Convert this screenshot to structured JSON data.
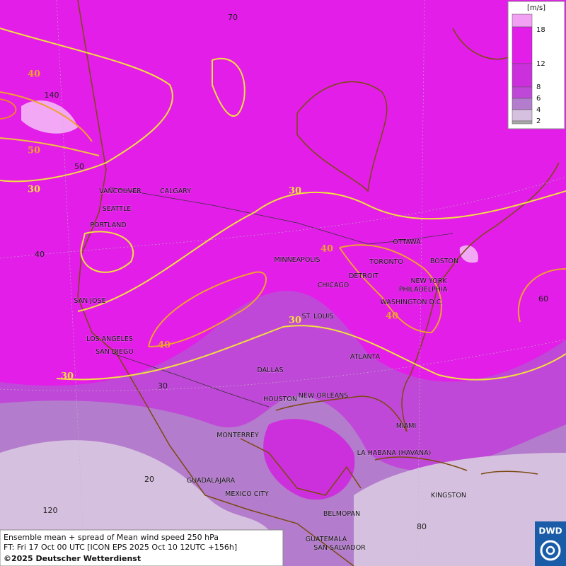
{
  "cities": [
    "VANCOUVER",
    "CALGARY",
    "SEATTLE",
    "PORTLAND",
    "SAN JOSE",
    "LOS ANGELES",
    "SAN DIEGO",
    "MINNEAPOLIS",
    "TORONTO",
    "OTTAWA",
    "BOSTON",
    "DETROIT",
    "CHICAGO",
    "NEW YORK",
    "PHILADELPHIA",
    "WASHINGTON D.C.",
    "ST. LOUIS",
    "ATLANTA",
    "DALLAS",
    "HOUSTON",
    "NEW ORLEANS",
    "MIAMI",
    "MONTERREY",
    "LA HABANA (HAVANA)",
    "GUADALAJARA",
    "MEXICO CITY",
    "KINGSTON",
    "BELMOPAN",
    "GUATEMALA",
    "SAN SALVADOR"
  ],
  "contour_labels": [
    40,
    50,
    30,
    30,
    40,
    40,
    30,
    40,
    30
  ],
  "grid_labels": [
    70,
    140,
    50,
    40,
    30,
    60,
    20,
    120,
    80
  ],
  "legend": {
    "unit": "[m/s]",
    "labels": [
      2,
      4,
      6,
      8,
      12,
      18
    ]
  },
  "footer": {
    "title": "Ensemble mean + spread of Mean wind speed 250 hPa",
    "forecast": "FT: Fri 17 Oct 00 UTC [ICON EPS 2025 Oct 10 12UTC +156h]",
    "copyright": "©2025 Deutscher Wetterdienst"
  },
  "logo": "DWD"
}
